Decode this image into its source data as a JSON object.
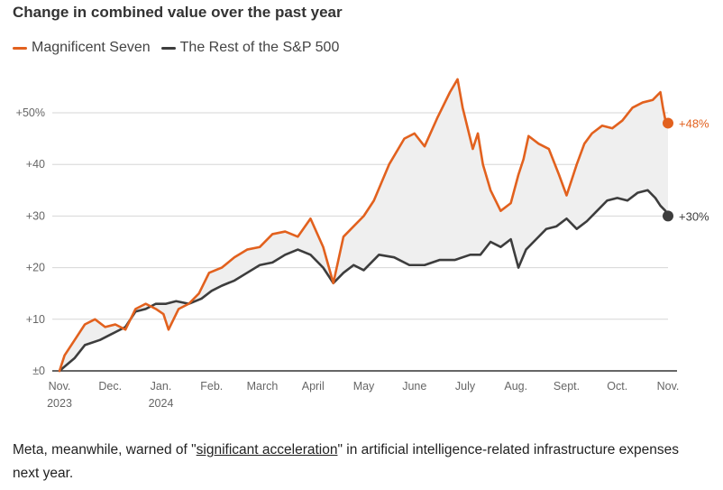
{
  "title": "Change in combined value over the past year",
  "legend": [
    {
      "name": "Magnificent Seven",
      "color": "#e2611e"
    },
    {
      "name": "The Rest of the S&P 500",
      "color": "#3d3d3d"
    }
  ],
  "caption": {
    "before": "Meta, meanwhile, warned of \"",
    "link": "significant acceleration",
    "after": "\" in artificial intelligence-related infrastructure expenses next year."
  },
  "chart_data": {
    "type": "line",
    "title": "Change in combined value over the past year",
    "ylim": [
      0,
      55
    ],
    "y_ticks": [
      0,
      10,
      20,
      30,
      40,
      50
    ],
    "y_tick_labels": [
      "±0",
      "+10",
      "+20",
      "+30",
      "+40",
      "+50%"
    ],
    "x_range": [
      0,
      12
    ],
    "x_ticks": [
      {
        "value": 0,
        "label": "Nov.",
        "sublabel": "2023"
      },
      {
        "value": 1,
        "label": "Dec.",
        "sublabel": ""
      },
      {
        "value": 2,
        "label": "Jan.",
        "sublabel": "2024"
      },
      {
        "value": 3,
        "label": "Feb.",
        "sublabel": ""
      },
      {
        "value": 4,
        "label": "March",
        "sublabel": ""
      },
      {
        "value": 5,
        "label": "April",
        "sublabel": ""
      },
      {
        "value": 6,
        "label": "May",
        "sublabel": ""
      },
      {
        "value": 7,
        "label": "June",
        "sublabel": ""
      },
      {
        "value": 8,
        "label": "July",
        "sublabel": ""
      },
      {
        "value": 9,
        "label": "Aug.",
        "sublabel": ""
      },
      {
        "value": 10,
        "label": "Sept.",
        "sublabel": ""
      },
      {
        "value": 11,
        "label": "Oct.",
        "sublabel": ""
      },
      {
        "value": 12,
        "label": "Nov.",
        "sublabel": ""
      }
    ],
    "grid": true,
    "series": [
      {
        "name": "Magnificent Seven",
        "color": "#e2611e",
        "end_label": "+48%",
        "x": [
          0,
          0.1,
          0.3,
          0.5,
          0.7,
          0.9,
          1.1,
          1.3,
          1.5,
          1.7,
          1.9,
          2.05,
          2.15,
          2.35,
          2.55,
          2.75,
          2.95,
          3.2,
          3.45,
          3.7,
          3.95,
          4.2,
          4.45,
          4.7,
          4.95,
          5.2,
          5.4,
          5.6,
          5.8,
          6.0,
          6.2,
          6.5,
          6.8,
          7.0,
          7.2,
          7.45,
          7.7,
          7.85,
          7.95,
          8.05,
          8.15,
          8.25,
          8.35,
          8.5,
          8.7,
          8.9,
          9.05,
          9.15,
          9.25,
          9.45,
          9.65,
          9.85,
          10.0,
          10.2,
          10.35,
          10.5,
          10.7,
          10.9,
          11.1,
          11.3,
          11.5,
          11.7,
          11.85,
          11.9,
          11.95,
          12.0
        ],
        "values": [
          0,
          3,
          6,
          9,
          10,
          8.5,
          9,
          8,
          12,
          13,
          12,
          11,
          8,
          12,
          13,
          15,
          19,
          20,
          22,
          23.5,
          24,
          26.5,
          27,
          26,
          29.5,
          24,
          17,
          26,
          28,
          30,
          33,
          40,
          45,
          46,
          43.5,
          49,
          54,
          56.5,
          51,
          47,
          43,
          46,
          40,
          35,
          31,
          32.5,
          38,
          41,
          45.5,
          44,
          43,
          38,
          34,
          40,
          44,
          46,
          47.5,
          47,
          48.5,
          51,
          52,
          52.5,
          54,
          51,
          48.5,
          48
        ]
      },
      {
        "name": "The Rest of the S&P 500",
        "color": "#3d3d3d",
        "end_label": "+30%",
        "x": [
          0,
          0.3,
          0.5,
          0.8,
          1.0,
          1.3,
          1.5,
          1.7,
          1.9,
          2.1,
          2.3,
          2.55,
          2.8,
          3.0,
          3.2,
          3.45,
          3.7,
          3.95,
          4.2,
          4.45,
          4.7,
          4.95,
          5.2,
          5.4,
          5.6,
          5.8,
          6.0,
          6.3,
          6.6,
          6.9,
          7.2,
          7.5,
          7.8,
          8.1,
          8.3,
          8.5,
          8.7,
          8.9,
          9.05,
          9.2,
          9.4,
          9.6,
          9.8,
          10.0,
          10.2,
          10.4,
          10.6,
          10.8,
          11.0,
          11.2,
          11.4,
          11.6,
          11.75,
          11.85,
          11.95,
          12.0
        ],
        "values": [
          0,
          2.5,
          5,
          6,
          7,
          8.5,
          11.5,
          12,
          13,
          13,
          13.5,
          13,
          14,
          15.5,
          16.5,
          17.5,
          19,
          20.5,
          21,
          22.5,
          23.5,
          22.5,
          20,
          17,
          19,
          20.5,
          19.5,
          22.5,
          22,
          20.5,
          20.5,
          21.5,
          21.5,
          22.5,
          22.5,
          25,
          24,
          25.5,
          20,
          23.5,
          25.5,
          27.5,
          28,
          29.5,
          27.5,
          29,
          31,
          33,
          33.5,
          33,
          34.5,
          35,
          33.5,
          32,
          31,
          30
        ]
      }
    ]
  }
}
